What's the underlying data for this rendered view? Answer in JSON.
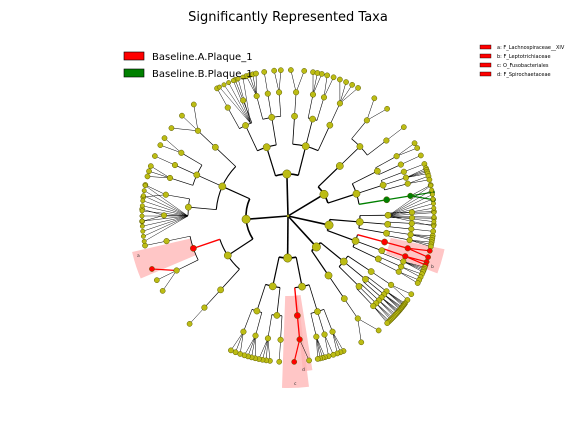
{
  "title": "Significantly Represented Taxa",
  "colors": {
    "node": "#bcbc14",
    "node_stroke": "#5a5a00",
    "enriched_a": "#ff0000",
    "enriched_b": "#008000",
    "highlight": "#ffb3b3",
    "edge": "#000000"
  },
  "legend": [
    {
      "label": "Baseline.A.Plaque_1",
      "color": "#ff0000"
    },
    {
      "label": "Baseline.B.Plaque_1",
      "color": "#008000"
    }
  ],
  "clade_key": [
    {
      "label": "a: F_Lachnospiraceae__XIV",
      "color": "#ff0000"
    },
    {
      "label": "b: F_Leptotrichiaceae",
      "color": "#ff0000"
    },
    {
      "label": "c: O_Fusobacteriales",
      "color": "#ff0000"
    },
    {
      "label": "d: F_Spirochaetaceae",
      "color": "#ff0000"
    }
  ],
  "highlight_labels": [
    "a",
    "b",
    "c",
    "d"
  ]
}
